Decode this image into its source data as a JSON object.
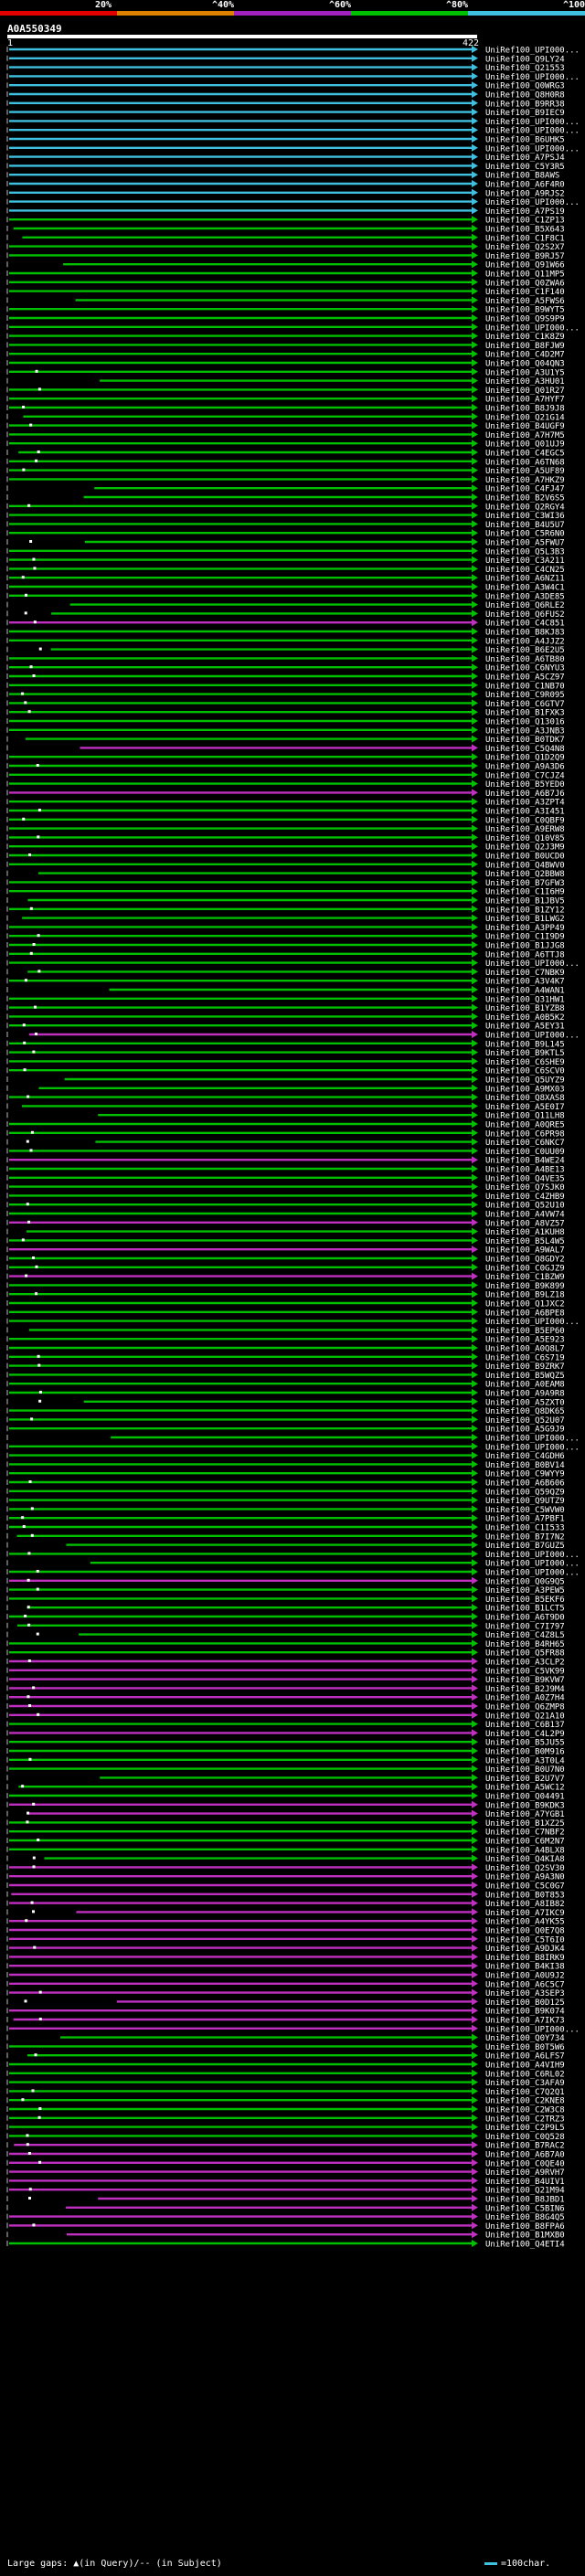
{
  "scale": {
    "labels": [
      "20%",
      "^40%",
      "^60%",
      "^80%",
      "^100%"
    ],
    "colors": [
      "#e00000",
      "#e08000",
      "#a020c0",
      "#00c000",
      "#40c0e0"
    ]
  },
  "query": {
    "id": "A0A550349",
    "start": "1",
    "end": "422"
  },
  "hit_colors": {
    "cyan": "#40c0e0",
    "green": "#00c000",
    "magenta": "#c030c0",
    "gap": "#ffffff",
    "bracket": "#c0c0c0"
  },
  "hits": [
    {
      "label": "UniRef100_UPI000...",
      "color": "cyan"
    },
    {
      "label": "UniRef100_Q9LY24",
      "color": "cyan"
    },
    {
      "label": "UniRef100_Q21553",
      "color": "cyan"
    },
    {
      "label": "UniRef100_UPI000...",
      "color": "cyan"
    },
    {
      "label": "UniRef100_Q0WRG3",
      "color": "cyan"
    },
    {
      "label": "UniRef100_Q8H0R8",
      "color": "cyan"
    },
    {
      "label": "UniRef100_B9RR38",
      "color": "cyan"
    },
    {
      "label": "UniRef100_B9IEC9",
      "color": "cyan"
    },
    {
      "label": "UniRef100_UPI000...",
      "color": "cyan"
    },
    {
      "label": "UniRef100_UPI000...",
      "color": "cyan"
    },
    {
      "label": "UniRef100_B6UHK5",
      "color": "cyan"
    },
    {
      "label": "UniRef100_UPI000...",
      "color": "cyan"
    },
    {
      "label": "UniRef100_A7PSJ4",
      "color": "cyan"
    },
    {
      "label": "UniRef100_C5Y3R5",
      "color": "cyan"
    },
    {
      "label": "UniRef100_B8AWS",
      "color": "cyan"
    },
    {
      "label": "UniRef100_A6F4R0",
      "color": "cyan"
    },
    {
      "label": "UniRef100_A9RJS2",
      "color": "cyan"
    },
    {
      "label": "UniRef100_UPI000...",
      "color": "cyan"
    },
    {
      "label": "UniRef100_A7PS19",
      "color": "cyan"
    },
    {
      "label": "UniRef100_C1ZP13",
      "color": "green"
    },
    {
      "label": "UniRef100_B5X643",
      "color": "green"
    },
    {
      "label": "UniRef100_C1F8C1",
      "color": "green"
    },
    {
      "label": "UniRef100_Q2S2X7",
      "color": "green"
    },
    {
      "label": "UniRef100_B9RJ57",
      "color": "green"
    },
    {
      "label": "UniRef100_Q91W66",
      "color": "green"
    },
    {
      "label": "UniRef100_Q11MP5",
      "color": "green"
    },
    {
      "label": "UniRef100_Q0ZWA6",
      "color": "green"
    },
    {
      "label": "UniRef100_C1F140",
      "color": "green"
    },
    {
      "label": "UniRef100_A5FWS6",
      "color": "green"
    },
    {
      "label": "UniRef100_B9WYT5",
      "color": "green"
    },
    {
      "label": "UniRef100_Q9S9P9",
      "color": "green"
    },
    {
      "label": "UniRef100_UPI000...",
      "color": "green"
    },
    {
      "label": "UniRef100_C1K8Z9",
      "color": "green"
    },
    {
      "label": "UniRef100_B8FJW9",
      "color": "green"
    },
    {
      "label": "UniRef100_C4D2M7",
      "color": "green"
    },
    {
      "label": "UniRef100_Q04QN3",
      "color": "green"
    },
    {
      "label": "UniRef100_A3U1Y5",
      "color": "green"
    },
    {
      "label": "UniRef100_A3HU01",
      "color": "green"
    },
    {
      "label": "UniRef100_Q01R27",
      "color": "green"
    },
    {
      "label": "UniRef100_A7HYF7",
      "color": "green"
    },
    {
      "label": "UniRef100_B8J9J8",
      "color": "green"
    },
    {
      "label": "UniRef100_Q21G14",
      "color": "green"
    },
    {
      "label": "UniRef100_B4UGF9",
      "color": "green"
    },
    {
      "label": "UniRef100_A7H7M5",
      "color": "green"
    },
    {
      "label": "UniRef100_Q01UJ9",
      "color": "green"
    },
    {
      "label": "UniRef100_C4EGC5",
      "color": "green"
    },
    {
      "label": "UniRef100_A6TN68",
      "color": "green"
    },
    {
      "label": "UniRef100_A5UF89",
      "color": "green"
    },
    {
      "label": "UniRef100_A7HKZ9",
      "color": "green"
    },
    {
      "label": "UniRef100_C4FJ47",
      "color": "green"
    },
    {
      "label": "UniRef100_B2V6S5",
      "color": "green"
    },
    {
      "label": "UniRef100_Q2RGY4",
      "color": "green"
    },
    {
      "label": "UniRef100_C3WI36",
      "color": "green"
    },
    {
      "label": "UniRef100_B4U5U7",
      "color": "green"
    },
    {
      "label": "UniRef100_C5R6N0",
      "color": "green"
    },
    {
      "label": "UniRef100_A5FWU7",
      "color": "green"
    },
    {
      "label": "UniRef100_Q5L3B3",
      "color": "green"
    },
    {
      "label": "UniRef100_C3A211",
      "color": "green"
    },
    {
      "label": "UniRef100_C4CN25",
      "color": "green"
    },
    {
      "label": "UniRef100_A6NZ11",
      "color": "green"
    },
    {
      "label": "UniRef100_A3W4C1",
      "color": "green"
    },
    {
      "label": "UniRef100_A3DE85",
      "color": "green"
    },
    {
      "label": "UniRef100_Q6RLE2",
      "color": "green"
    },
    {
      "label": "UniRef100_Q6FUS2",
      "color": "green"
    },
    {
      "label": "UniRef100_C4C851",
      "color": "magenta"
    },
    {
      "label": "UniRef100_B8KJ83",
      "color": "green"
    },
    {
      "label": "UniRef100_A4JJZ2",
      "color": "green"
    },
    {
      "label": "UniRef100_B6E2U5",
      "color": "green"
    },
    {
      "label": "UniRef100_A6TB80",
      "color": "green"
    },
    {
      "label": "UniRef100_C6NYU3",
      "color": "green"
    },
    {
      "label": "UniRef100_A5CZ97",
      "color": "green"
    },
    {
      "label": "UniRef100_C1NB70",
      "color": "green"
    },
    {
      "label": "UniRef100_C9R095",
      "color": "green"
    },
    {
      "label": "UniRef100_C6GTV7",
      "color": "green"
    },
    {
      "label": "UniRef100_B1FXK3",
      "color": "green"
    },
    {
      "label": "UniRef100_Q13016",
      "color": "green"
    },
    {
      "label": "UniRef100_A3JNB3",
      "color": "green"
    },
    {
      "label": "UniRef100_B0TDK7",
      "color": "green"
    },
    {
      "label": "UniRef100_C5Q4N8",
      "color": "magenta"
    },
    {
      "label": "UniRef100_Q1D2Q9",
      "color": "green"
    },
    {
      "label": "UniRef100_A9A3D6",
      "color": "green"
    },
    {
      "label": "UniRef100_C7CJZ4",
      "color": "green"
    },
    {
      "label": "UniRef100_B5YED0",
      "color": "green"
    },
    {
      "label": "UniRef100_A6B7J6",
      "color": "magenta"
    },
    {
      "label": "UniRef100_A3ZPT4",
      "color": "green"
    },
    {
      "label": "UniRef100_A3I451",
      "color": "green"
    },
    {
      "label": "UniRef100_C0QBF9",
      "color": "green"
    },
    {
      "label": "UniRef100_A9ERW8",
      "color": "green"
    },
    {
      "label": "UniRef100_Q10V85",
      "color": "green"
    },
    {
      "label": "UniRef100_Q2J3M9",
      "color": "green"
    },
    {
      "label": "UniRef100_B0UCD0",
      "color": "green"
    },
    {
      "label": "UniRef100_Q4BWV0",
      "color": "green"
    },
    {
      "label": "UniRef100_Q2BBW8",
      "color": "green"
    },
    {
      "label": "UniRef100_B7GFW3",
      "color": "green"
    },
    {
      "label": "UniRef100_C1I6H9",
      "color": "green"
    },
    {
      "label": "UniRef100_B1JBV5",
      "color": "green"
    },
    {
      "label": "UniRef100_B1ZY12",
      "color": "green"
    },
    {
      "label": "UniRef100_B1LWG2",
      "color": "green"
    },
    {
      "label": "UniRef100_A3PP49",
      "color": "green"
    },
    {
      "label": "UniRef100_C1I9D9",
      "color": "green"
    },
    {
      "label": "UniRef100_B1JJG8",
      "color": "green"
    },
    {
      "label": "UniRef100_A6TTJ8",
      "color": "green"
    },
    {
      "label": "UniRef100_UPI000...",
      "color": "green"
    },
    {
      "label": "UniRef100_C7NBK9",
      "color": "green"
    },
    {
      "label": "UniRef100_A3V4K7",
      "color": "green"
    },
    {
      "label": "UniRef100_A4WAN1",
      "color": "green"
    },
    {
      "label": "UniRef100_Q31HW1",
      "color": "green"
    },
    {
      "label": "UniRef100_B1YZB8",
      "color": "green"
    },
    {
      "label": "UniRef100_A0B5K2",
      "color": "green"
    },
    {
      "label": "UniRef100_A5EY31",
      "color": "green"
    },
    {
      "label": "UniRef100_UPI000...",
      "color": "magenta"
    },
    {
      "label": "UniRef100_B9L145",
      "color": "green"
    },
    {
      "label": "UniRef100_B9KTL5",
      "color": "green"
    },
    {
      "label": "UniRef100_C6SHE9",
      "color": "green"
    },
    {
      "label": "UniRef100_C6SCV0",
      "color": "green"
    },
    {
      "label": "UniRef100_Q5UYZ9",
      "color": "green"
    },
    {
      "label": "UniRef100_A9MX03",
      "color": "green"
    },
    {
      "label": "UniRef100_Q8XAS8",
      "color": "green"
    },
    {
      "label": "UniRef100_A5E0I7",
      "color": "green"
    },
    {
      "label": "UniRef100_Q11LH8",
      "color": "green"
    },
    {
      "label": "UniRef100_A0QRE5",
      "color": "green"
    },
    {
      "label": "UniRef100_C6PR98",
      "color": "green"
    },
    {
      "label": "UniRef100_C6NKC7",
      "color": "green"
    },
    {
      "label": "UniRef100_C0UU09",
      "color": "green"
    },
    {
      "label": "UniRef100_B4WE24",
      "color": "magenta"
    },
    {
      "label": "UniRef100_A4BE13",
      "color": "green"
    },
    {
      "label": "UniRef100_Q4VE35",
      "color": "green"
    },
    {
      "label": "UniRef100_Q7SJK0",
      "color": "green"
    },
    {
      "label": "UniRef100_C4ZHB9",
      "color": "green"
    },
    {
      "label": "UniRef100_Q52U10",
      "color": "green"
    },
    {
      "label": "UniRef100_A4VW74",
      "color": "green"
    },
    {
      "label": "UniRef100_A8VZ57",
      "color": "magenta"
    },
    {
      "label": "UniRef100_A1KUH8",
      "color": "green"
    },
    {
      "label": "UniRef100_B5L4W5",
      "color": "green"
    },
    {
      "label": "UniRef100_A9WAL7",
      "color": "magenta"
    },
    {
      "label": "UniRef100_Q8GDY2",
      "color": "green"
    },
    {
      "label": "UniRef100_C0GJZ9",
      "color": "green"
    },
    {
      "label": "UniRef100_C1BZW9",
      "color": "magenta"
    },
    {
      "label": "UniRef100_B9K899",
      "color": "green"
    },
    {
      "label": "UniRef100_B9LZ18",
      "color": "green"
    },
    {
      "label": "UniRef100_Q1JXC2",
      "color": "green"
    },
    {
      "label": "UniRef100_A6BPE8",
      "color": "green"
    },
    {
      "label": "UniRef100_UPI000...",
      "color": "green"
    },
    {
      "label": "UniRef100_B5EP60",
      "color": "green"
    },
    {
      "label": "UniRef100_A5E923",
      "color": "green"
    },
    {
      "label": "UniRef100_A0Q8L7",
      "color": "green"
    },
    {
      "label": "UniRef100_C6S719",
      "color": "green"
    },
    {
      "label": "UniRef100_B9ZRK7",
      "color": "green"
    },
    {
      "label": "UniRef100_B5WQZ5",
      "color": "green"
    },
    {
      "label": "UniRef100_A0EAM8",
      "color": "green"
    },
    {
      "label": "UniRef100_A9A9R8",
      "color": "green"
    },
    {
      "label": "UniRef100_A5ZXT0",
      "color": "green"
    },
    {
      "label": "UniRef100_Q8DK65",
      "color": "green"
    },
    {
      "label": "UniRef100_Q52U07",
      "color": "green"
    },
    {
      "label": "UniRef100_A5G9J9",
      "color": "green"
    },
    {
      "label": "UniRef100_UPI000...",
      "color": "green"
    },
    {
      "label": "UniRef100_UPI000...",
      "color": "green"
    },
    {
      "label": "UniRef100_C4GDH6",
      "color": "green"
    },
    {
      "label": "UniRef100_B0BV14",
      "color": "green"
    },
    {
      "label": "UniRef100_C9WYY9",
      "color": "green"
    },
    {
      "label": "UniRef100_A6B606",
      "color": "green"
    },
    {
      "label": "UniRef100_Q59QZ9",
      "color": "green"
    },
    {
      "label": "UniRef100_Q9UTZ9",
      "color": "green"
    },
    {
      "label": "UniRef100_C5WVW0",
      "color": "green"
    },
    {
      "label": "UniRef100_A7PBF1",
      "color": "green"
    },
    {
      "label": "UniRef100_C1I533",
      "color": "green"
    },
    {
      "label": "UniRef100_B7I7N2",
      "color": "green"
    },
    {
      "label": "UniRef100_B7GUZ5",
      "color": "green"
    },
    {
      "label": "UniRef100_UPI000...",
      "color": "green"
    },
    {
      "label": "UniRef100_UPI000...",
      "color": "green"
    },
    {
      "label": "UniRef100_UPI000...",
      "color": "green"
    },
    {
      "label": "UniRef100_Q0G9Q5",
      "color": "magenta"
    },
    {
      "label": "UniRef100_A3PEW5",
      "color": "green"
    },
    {
      "label": "UniRef100_B5EKF6",
      "color": "green"
    },
    {
      "label": "UniRef100_B1LCT5",
      "color": "green"
    },
    {
      "label": "UniRef100_A6T9D0",
      "color": "green"
    },
    {
      "label": "UniRef100_C7I797",
      "color": "green"
    },
    {
      "label": "UniRef100_C4Z8L5",
      "color": "green"
    },
    {
      "label": "UniRef100_B4RH65",
      "color": "green"
    },
    {
      "label": "UniRef100_Q5FR88",
      "color": "green"
    },
    {
      "label": "UniRef100_A3CLP2",
      "color": "magenta"
    },
    {
      "label": "UniRef100_C5VK99",
      "color": "magenta"
    },
    {
      "label": "UniRef100_B9KVW7",
      "color": "magenta"
    },
    {
      "label": "UniRef100_B2J9M4",
      "color": "magenta"
    },
    {
      "label": "UniRef100_A0Z7H4",
      "color": "magenta"
    },
    {
      "label": "UniRef100_Q6ZMP8",
      "color": "magenta"
    },
    {
      "label": "UniRef100_Q21A10",
      "color": "magenta"
    },
    {
      "label": "UniRef100_C6B137",
      "color": "green"
    },
    {
      "label": "UniRef100_C4L2P9",
      "color": "magenta"
    },
    {
      "label": "UniRef100_B5JU55",
      "color": "green"
    },
    {
      "label": "UniRef100_B0M916",
      "color": "green"
    },
    {
      "label": "UniRef100_A3T0L4",
      "color": "green"
    },
    {
      "label": "UniRef100_B0U7N0",
      "color": "green"
    },
    {
      "label": "UniRef100_B2U7V7",
      "color": "green"
    },
    {
      "label": "UniRef100_A5WC12",
      "color": "green"
    },
    {
      "label": "UniRef100_Q04491",
      "color": "green"
    },
    {
      "label": "UniRef100_B9KDK3",
      "color": "magenta"
    },
    {
      "label": "UniRef100_A7YGB1",
      "color": "magenta"
    },
    {
      "label": "UniRef100_B1XZ25",
      "color": "green"
    },
    {
      "label": "UniRef100_C7NBF2",
      "color": "green"
    },
    {
      "label": "UniRef100_C6M2N7",
      "color": "green"
    },
    {
      "label": "UniRef100_A4BLX8",
      "color": "green"
    },
    {
      "label": "UniRef100_Q4KIA8",
      "color": "green"
    },
    {
      "label": "UniRef100_Q2SV30",
      "color": "magenta"
    },
    {
      "label": "UniRef100_A9A3N0",
      "color": "magenta"
    },
    {
      "label": "UniRef100_C5C0G7",
      "color": "magenta"
    },
    {
      "label": "UniRef100_B0T853",
      "color": "magenta"
    },
    {
      "label": "UniRef100_A8IB82",
      "color": "magenta"
    },
    {
      "label": "UniRef100_A7IKC9",
      "color": "magenta"
    },
    {
      "label": "UniRef100_A4YK55",
      "color": "magenta"
    },
    {
      "label": "UniRef100_Q0E7Q8",
      "color": "magenta"
    },
    {
      "label": "UniRef100_C5T6I0",
      "color": "magenta"
    },
    {
      "label": "UniRef100_A9DJK4",
      "color": "magenta"
    },
    {
      "label": "UniRef100_B8IRK9",
      "color": "magenta"
    },
    {
      "label": "UniRef100_B4KI38",
      "color": "magenta"
    },
    {
      "label": "UniRef100_A0U9J2",
      "color": "magenta"
    },
    {
      "label": "UniRef100_A6C5C7",
      "color": "magenta"
    },
    {
      "label": "UniRef100_A3SEP3",
      "color": "magenta"
    },
    {
      "label": "UniRef100_B0D125",
      "color": "magenta"
    },
    {
      "label": "UniRef100_B9K074",
      "color": "magenta"
    },
    {
      "label": "UniRef100_A7IK73",
      "color": "magenta"
    },
    {
      "label": "UniRef100_UPI000...",
      "color": "magenta"
    },
    {
      "label": "UniRef100_Q0Y734",
      "color": "green"
    },
    {
      "label": "UniRef100_B0T5W6",
      "color": "green"
    },
    {
      "label": "UniRef100_A6LFS7",
      "color": "green"
    },
    {
      "label": "UniRef100_A4VIH9",
      "color": "green"
    },
    {
      "label": "UniRef100_C6RL02",
      "color": "green"
    },
    {
      "label": "UniRef100_C3AFA9",
      "color": "green"
    },
    {
      "label": "UniRef100_C7Q2Q1",
      "color": "green"
    },
    {
      "label": "UniRef100_C2KNE8",
      "color": "green"
    },
    {
      "label": "UniRef100_C2W3C8",
      "color": "green"
    },
    {
      "label": "UniRef100_C2TRZ3",
      "color": "green"
    },
    {
      "label": "UniRef100_C2P9L5",
      "color": "green"
    },
    {
      "label": "UniRef100_C0Q528",
      "color": "green"
    },
    {
      "label": "UniRef100_B7RAC2",
      "color": "magenta"
    },
    {
      "label": "UniRef100_A6B7A0",
      "color": "magenta"
    },
    {
      "label": "UniRef100_C0QE40",
      "color": "magenta"
    },
    {
      "label": "UniRef100_A9RVH7",
      "color": "magenta"
    },
    {
      "label": "UniRef100_B4UIV1",
      "color": "magenta"
    },
    {
      "label": "UniRef100_Q21M94",
      "color": "magenta"
    },
    {
      "label": "UniRef100_B8JBD1",
      "color": "magenta"
    },
    {
      "label": "UniRef100_C5BIN6",
      "color": "magenta"
    },
    {
      "label": "UniRef100_B8G4Q5",
      "color": "magenta"
    },
    {
      "label": "UniRef100_B8FPA6",
      "color": "magenta"
    },
    {
      "label": "UniRef100_B1MXB0",
      "color": "magenta"
    },
    {
      "label": "UniRef100_Q4ETI4",
      "color": "green"
    }
  ],
  "legend": {
    "text": "Large gaps: ▲(in Query)/-- (in Subject)",
    "scale_text": "=100char."
  }
}
